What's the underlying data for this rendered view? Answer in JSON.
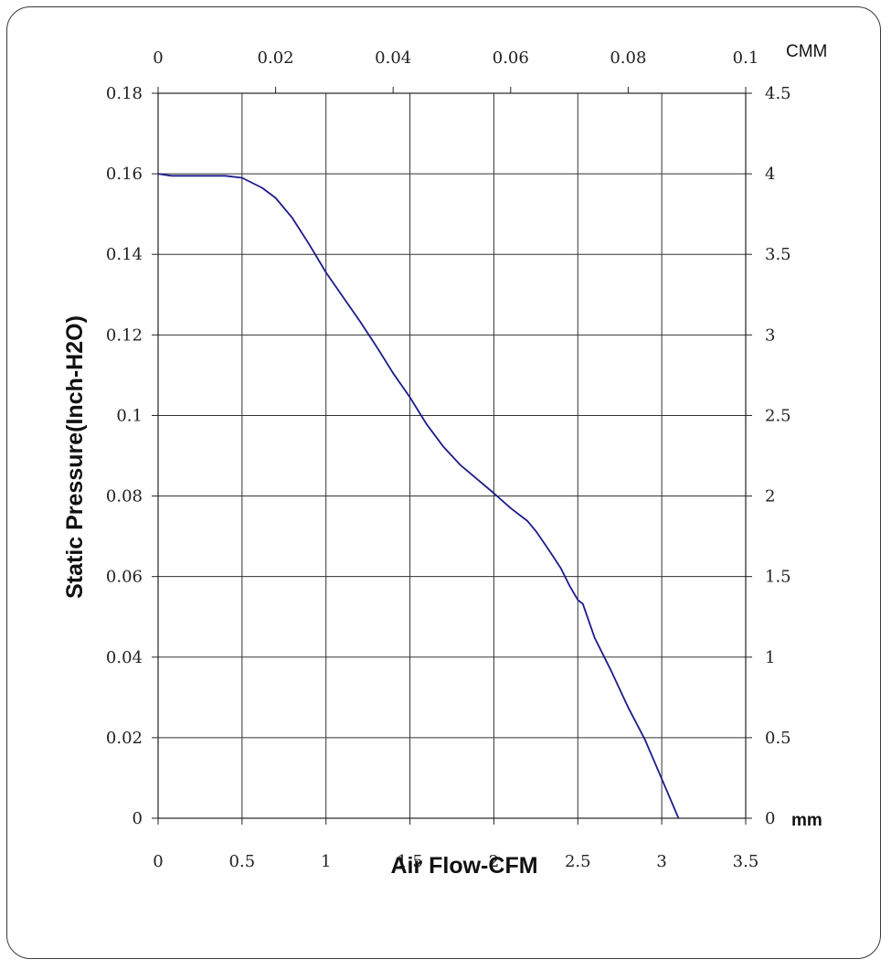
{
  "chart_data": {
    "type": "line",
    "xlabel": "Air Flow-CFM",
    "ylabel": "Static Pressure(Inch-H2O)",
    "x_unit_top": "CMM",
    "y_unit_right": "mm",
    "xlim": [
      0,
      3.5
    ],
    "ylim": [
      0,
      0.18
    ],
    "x_ticks": [
      "0",
      "0.5",
      "1",
      "1.5",
      "2",
      "2.5",
      "3",
      "3.5"
    ],
    "y_ticks": [
      "0",
      "0.02",
      "0.04",
      "0.06",
      "0.08",
      "0.1",
      "0.12",
      "0.14",
      "0.16",
      "0.18"
    ],
    "x2_ticks": [
      "0",
      "0.02",
      "0.04",
      "0.06",
      "0.08",
      "0.1"
    ],
    "x2lim": [
      0,
      0.1
    ],
    "y2_ticks": [
      "0",
      "0.5",
      "1",
      "1.5",
      "2",
      "2.5",
      "3",
      "3.5",
      "4",
      "4.5"
    ],
    "y2lim": [
      0,
      4.5
    ],
    "grid": true,
    "line_color": "#1c1c8c",
    "series": [
      {
        "x": [
          0,
          0.08,
          0.2,
          0.4,
          0.5,
          0.62,
          0.7,
          0.8,
          0.9,
          1.0,
          1.1,
          1.2,
          1.3,
          1.4,
          1.5,
          1.6,
          1.7,
          1.8,
          1.9,
          2.0,
          2.1,
          2.2,
          2.25,
          2.3,
          2.35,
          2.4,
          2.45,
          2.5,
          2.53,
          2.6,
          2.7,
          2.8,
          2.9,
          3.0,
          3.1
        ],
        "y": [
          0.16,
          0.1595,
          0.1595,
          0.1595,
          0.159,
          0.1565,
          0.154,
          0.149,
          0.1425,
          0.1355,
          0.1295,
          0.1235,
          0.1172,
          0.1105,
          0.1045,
          0.0978,
          0.0922,
          0.0877,
          0.0842,
          0.0807,
          0.077,
          0.0738,
          0.0713,
          0.0683,
          0.0652,
          0.062,
          0.0578,
          0.0542,
          0.0532,
          0.0448,
          0.0365,
          0.0275,
          0.0195,
          0.0098,
          0.0
        ]
      }
    ]
  }
}
